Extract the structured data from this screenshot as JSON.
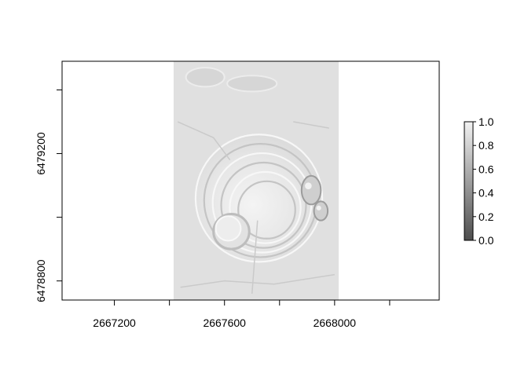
{
  "chart_data": {
    "type": "heatmap",
    "title": "",
    "xlabel": "",
    "ylabel": "",
    "xlim": [
      2667010,
      2668380
    ],
    "ylim": [
      6478740,
      6479490
    ],
    "raster_extent": {
      "x": [
        2667415,
        2668015
      ],
      "y": [
        6478740,
        6479490
      ]
    },
    "x_ticks": [
      {
        "value": 2667200,
        "label": "2667200"
      },
      {
        "value": 2667400,
        "label": ""
      },
      {
        "value": 2667600,
        "label": "2667600"
      },
      {
        "value": 2667800,
        "label": ""
      },
      {
        "value": 2668000,
        "label": "2668000"
      },
      {
        "value": 2668200,
        "label": ""
      }
    ],
    "y_ticks": [
      {
        "value": 6478800,
        "label": "6478800"
      },
      {
        "value": 6479000,
        "label": ""
      },
      {
        "value": 6479200,
        "label": "6479200"
      },
      {
        "value": 6479400,
        "label": ""
      }
    ],
    "value_range": [
      0,
      1
    ],
    "legend": {
      "position": "right",
      "ticks": [
        {
          "value": 0.0,
          "label": "0.0"
        },
        {
          "value": 0.2,
          "label": "0.2"
        },
        {
          "value": 0.4,
          "label": "0.4"
        },
        {
          "value": 0.6,
          "label": "0.6"
        },
        {
          "value": 0.8,
          "label": "0.8"
        },
        {
          "value": 1.0,
          "label": "1.0"
        }
      ],
      "color_low": "#4d4d4d",
      "color_high": "#f2f2f2"
    },
    "grid": false,
    "features": [
      {
        "kind": "pit",
        "cx": 2667725,
        "cy": 6479060,
        "rx": 230,
        "ry": 200,
        "rings": 6
      },
      {
        "kind": "crater",
        "cx": 2667625,
        "cy": 6478955,
        "rx": 65,
        "ry": 55
      },
      {
        "kind": "blob",
        "cx": 2667915,
        "cy": 6479085,
        "rx": 35,
        "ry": 45
      },
      {
        "kind": "blob",
        "cx": 2667950,
        "cy": 6479020,
        "rx": 25,
        "ry": 30
      },
      {
        "kind": "ridge",
        "cx": 2667530,
        "cy": 6479440,
        "rx": 70,
        "ry": 30
      },
      {
        "kind": "ridge",
        "cx": 2667700,
        "cy": 6479420,
        "rx": 90,
        "ry": 25
      }
    ]
  }
}
